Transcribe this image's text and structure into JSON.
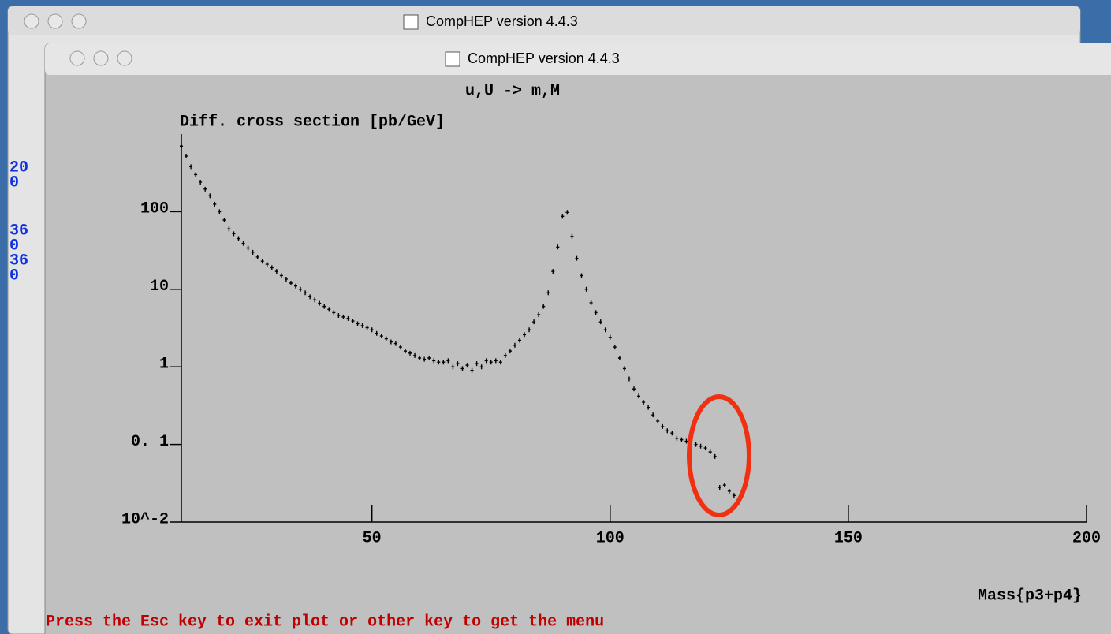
{
  "windows": {
    "back_title": "CompHEP version 4.4.3",
    "front_title": "CompHEP version 4.4.3"
  },
  "left_panel": {
    "lines": [
      "20",
      "0",
      "36",
      "0",
      "36",
      "0"
    ]
  },
  "footer": "Press the Esc key to exit plot or other key to get the menu",
  "chart_data": {
    "type": "scatter",
    "title": "u,U -> m,M",
    "y_label": "Diff. cross section [pb/GeV]",
    "x_label": "Mass{p3+p4}",
    "log_y": true,
    "color": "#000000",
    "xlim": [
      10,
      200
    ],
    "xticks": [
      50,
      100,
      150,
      200
    ],
    "ylim": [
      0.01,
      1000
    ],
    "yticks": [
      {
        "value": 0.01,
        "label": "10^-2"
      },
      {
        "value": 0.1,
        "label": "0. 1"
      },
      1,
      10,
      100
    ],
    "x": [
      10,
      11,
      12,
      13,
      14,
      15,
      16,
      17,
      18,
      19,
      20,
      21,
      22,
      23,
      24,
      25,
      26,
      27,
      28,
      29,
      30,
      31,
      32,
      33,
      34,
      35,
      36,
      37,
      38,
      39,
      40,
      41,
      42,
      43,
      44,
      45,
      46,
      47,
      48,
      49,
      50,
      51,
      52,
      53,
      54,
      55,
      56,
      57,
      58,
      59,
      60,
      61,
      62,
      63,
      64,
      65,
      66,
      67,
      68,
      69,
      70,
      71,
      72,
      73,
      74,
      75,
      76,
      77,
      78,
      79,
      80,
      81,
      82,
      83,
      84,
      85,
      86,
      87,
      88,
      89,
      90,
      91,
      92,
      93,
      94,
      95,
      96,
      97,
      98,
      99,
      100,
      101,
      102,
      103,
      104,
      105,
      106,
      107,
      108,
      109,
      110,
      111,
      112,
      113,
      114,
      115,
      116,
      117,
      118,
      119,
      120,
      121,
      122,
      123,
      124,
      125,
      126,
      127
    ],
    "values": [
      700,
      520,
      380,
      300,
      240,
      195,
      160,
      125,
      100,
      78,
      60,
      52,
      45,
      39,
      34,
      30,
      26,
      23,
      21,
      19,
      17,
      15,
      13.5,
      12,
      11,
      10,
      9,
      8,
      7.3,
      6.6,
      6,
      5.5,
      5,
      4.6,
      4.4,
      4.2,
      3.9,
      3.6,
      3.4,
      3.2,
      3,
      2.7,
      2.5,
      2.3,
      2.1,
      2,
      1.8,
      1.6,
      1.5,
      1.4,
      1.3,
      1.25,
      1.3,
      1.2,
      1.15,
      1.15,
      1.2,
      1.0,
      1.1,
      0.95,
      1.05,
      0.9,
      1.1,
      1.0,
      1.2,
      1.15,
      1.2,
      1.15,
      1.4,
      1.6,
      1.9,
      2.2,
      2.6,
      3,
      3.8,
      4.7,
      6,
      9,
      17,
      35,
      87,
      98,
      48,
      25,
      15,
      10,
      6.7,
      5,
      3.8,
      3,
      2.4,
      1.8,
      1.3,
      0.95,
      0.7,
      0.52,
      0.42,
      0.35,
      0.3,
      0.24,
      0.2,
      0.17,
      0.15,
      0.14,
      0.12,
      0.115,
      0.11,
      0.13,
      0.1,
      0.095,
      0.09,
      0.08,
      0.07,
      0.028,
      0.03,
      0.025,
      0.022,
      0.018
    ]
  }
}
